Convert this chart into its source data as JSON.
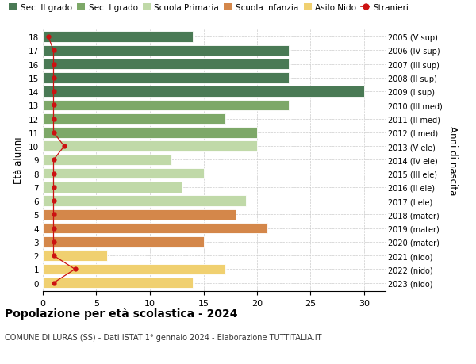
{
  "ages": [
    18,
    17,
    16,
    15,
    14,
    13,
    12,
    11,
    10,
    9,
    8,
    7,
    6,
    5,
    4,
    3,
    2,
    1,
    0
  ],
  "values": [
    14,
    23,
    23,
    23,
    30,
    23,
    17,
    20,
    20,
    12,
    15,
    13,
    19,
    18,
    21,
    15,
    6,
    17,
    14
  ],
  "stranieri_x": [
    0.5,
    1.0,
    1.0,
    1.0,
    1.0,
    1.0,
    1.0,
    1.0,
    2.0,
    1.0,
    1.0,
    1.0,
    1.0,
    1.0,
    1.0,
    1.0,
    1.0,
    3.0,
    1.0
  ],
  "bar_colors": [
    "#4a7a55",
    "#4a7a55",
    "#4a7a55",
    "#4a7a55",
    "#4a7a55",
    "#7da868",
    "#7da868",
    "#7da868",
    "#c0d9a8",
    "#c0d9a8",
    "#c0d9a8",
    "#c0d9a8",
    "#c0d9a8",
    "#d4874a",
    "#d4874a",
    "#d4874a",
    "#f0d070",
    "#f0d070",
    "#f0d070"
  ],
  "right_labels": [
    "2005 (V sup)",
    "2006 (IV sup)",
    "2007 (III sup)",
    "2008 (II sup)",
    "2009 (I sup)",
    "2010 (III med)",
    "2011 (II med)",
    "2012 (I med)",
    "2013 (V ele)",
    "2014 (IV ele)",
    "2015 (III ele)",
    "2016 (II ele)",
    "2017 (I ele)",
    "2018 (mater)",
    "2019 (mater)",
    "2020 (mater)",
    "2021 (nido)",
    "2022 (nido)",
    "2023 (nido)"
  ],
  "legend_labels": [
    "Sec. II grado",
    "Sec. I grado",
    "Scuola Primaria",
    "Scuola Infanzia",
    "Asilo Nido",
    "Stranieri"
  ],
  "legend_colors": [
    "#4a7a55",
    "#7da868",
    "#c0d9a8",
    "#d4874a",
    "#f0d070",
    "#cc1111"
  ],
  "title": "Popolazione per età scolastica - 2024",
  "subtitle": "COMUNE DI LURAS (SS) - Dati ISTAT 1° gennaio 2024 - Elaborazione TUTTITALIA.IT",
  "ylabel_left": "Età alunni",
  "ylabel_right": "Anni di nascita",
  "xlim": [
    0,
    32
  ],
  "xticks": [
    0,
    5,
    10,
    15,
    20,
    25,
    30
  ],
  "background_color": "#ffffff",
  "bar_height": 0.78,
  "stranieri_color": "#cc1111"
}
